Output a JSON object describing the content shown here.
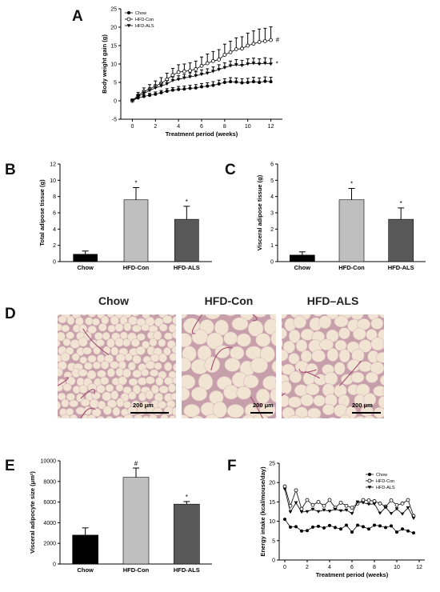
{
  "panels": {
    "A": "A",
    "B": "B",
    "C": "C",
    "D": "D",
    "E": "E",
    "F": "F"
  },
  "groups": [
    "Chow",
    "HFD-Con",
    "HFD-ALS"
  ],
  "micrographs": {
    "labels": [
      "Chow",
      "HFD-Con",
      "HFD–ALS"
    ],
    "scale_bar": "200 μm"
  },
  "chart_data": [
    {
      "id": "A",
      "type": "line",
      "xlabel": "Treatment period (weeks)",
      "ylabel": "Body weight gain (g)",
      "xlim": [
        -1,
        13
      ],
      "ylim": [
        -5,
        25
      ],
      "xticks": [
        0,
        2,
        4,
        6,
        8,
        10,
        12
      ],
      "yticks": [
        -5,
        0,
        5,
        10,
        15,
        20,
        25
      ],
      "legend_position": "top-left",
      "x": [
        0,
        0.5,
        1,
        1.5,
        2,
        2.5,
        3,
        3.5,
        4,
        4.5,
        5,
        5.5,
        6,
        6.5,
        7,
        7.5,
        8,
        8.5,
        9,
        9.5,
        10,
        10.5,
        11,
        11.5,
        12
      ],
      "series": [
        {
          "name": "Chow",
          "marker": "filled-circle",
          "values": [
            0,
            0.8,
            1.2,
            1.5,
            1.8,
            2.2,
            2.6,
            2.9,
            3.1,
            3.2,
            3.4,
            3.5,
            3.8,
            4.0,
            4.2,
            4.6,
            5.0,
            5.2,
            5.1,
            4.9,
            5.0,
            5.2,
            5.0,
            5.3,
            5.2
          ],
          "errors": [
            0.3,
            0.4,
            0.5,
            0.5,
            0.6,
            0.6,
            0.7,
            0.7,
            0.8,
            0.8,
            0.8,
            0.9,
            0.9,
            0.9,
            1.0,
            1.0,
            1.0,
            1.1,
            1.1,
            1.1,
            1.1,
            1.2,
            1.2,
            1.2,
            1.2
          ]
        },
        {
          "name": "HFD-Con",
          "marker": "open-circle",
          "values": [
            0,
            1.5,
            2.5,
            3.2,
            4.0,
            4.8,
            5.8,
            7.0,
            7.8,
            8.0,
            8.2,
            8.6,
            9.5,
            10.2,
            10.8,
            11.2,
            12.5,
            13.2,
            14.0,
            14.2,
            15.0,
            15.5,
            16.0,
            16.2,
            16.5
          ],
          "errors": [
            0.5,
            0.8,
            1.0,
            1.2,
            1.4,
            1.5,
            1.7,
            1.8,
            2.0,
            2.0,
            2.1,
            2.2,
            2.4,
            2.5,
            2.6,
            2.7,
            2.9,
            3.0,
            3.1,
            3.2,
            3.4,
            3.5,
            3.5,
            3.5,
            3.6
          ]
        },
        {
          "name": "HFD-ALS",
          "marker": "filled-triangle",
          "values": [
            0,
            1.2,
            2.0,
            2.8,
            3.5,
            4.0,
            4.6,
            5.5,
            5.8,
            6.2,
            6.5,
            6.8,
            7.2,
            7.5,
            8.0,
            8.5,
            9.0,
            9.5,
            9.8,
            9.6,
            10.0,
            10.2,
            10.0,
            10.2,
            10.0
          ],
          "errors": [
            0.3,
            0.5,
            0.6,
            0.7,
            0.8,
            0.8,
            0.9,
            1.0,
            1.0,
            1.0,
            1.1,
            1.1,
            1.2,
            1.2,
            1.2,
            1.3,
            1.3,
            1.3,
            1.4,
            1.4,
            1.4,
            1.4,
            1.4,
            1.5,
            1.5
          ]
        }
      ],
      "annotations": [
        {
          "text": "#",
          "series": "HFD-Con"
        },
        {
          "text": "*",
          "series": "HFD-ALS"
        }
      ]
    },
    {
      "id": "B",
      "type": "bar",
      "ylabel": "Total adipose tissue (g)",
      "categories": [
        "Chow",
        "HFD-Con",
        "HFD-ALS"
      ],
      "values": [
        0.9,
        7.6,
        5.2
      ],
      "errors": [
        0.4,
        1.5,
        1.6
      ],
      "ylim": [
        0,
        12
      ],
      "yticks": [
        0,
        2,
        4,
        6,
        8,
        10,
        12
      ],
      "annotations": [
        "",
        "*",
        "*"
      ],
      "colors": [
        "#000000",
        "#bfbfbf",
        "#595959"
      ]
    },
    {
      "id": "C",
      "type": "bar",
      "ylabel": "Visceral adipose tissue (g)",
      "categories": [
        "Chow",
        "HFD-Con",
        "HFD-ALS"
      ],
      "values": [
        0.4,
        3.8,
        2.6
      ],
      "errors": [
        0.2,
        0.7,
        0.7
      ],
      "ylim": [
        0,
        6
      ],
      "yticks": [
        0,
        1,
        2,
        3,
        4,
        5,
        6
      ],
      "annotations": [
        "",
        "*",
        "*"
      ],
      "colors": [
        "#000000",
        "#bfbfbf",
        "#595959"
      ]
    },
    {
      "id": "E",
      "type": "bar",
      "ylabel": "Visceral adipocyte size (μm²)",
      "categories": [
        "Chow",
        "HFD-Con",
        "HFD-ALS"
      ],
      "values": [
        2800,
        8400,
        5800
      ],
      "errors": [
        700,
        900,
        250
      ],
      "ylim": [
        0,
        10000
      ],
      "yticks": [
        0,
        2000,
        4000,
        6000,
        8000,
        10000
      ],
      "annotations": [
        "",
        "#",
        "*"
      ],
      "colors": [
        "#000000",
        "#bfbfbf",
        "#595959"
      ]
    },
    {
      "id": "F",
      "type": "line",
      "xlabel": "Treatment period (weeks)",
      "ylabel": "Energy intake (kcal/mouse/day)",
      "xlim": [
        -0.5,
        12.5
      ],
      "ylim": [
        0,
        25
      ],
      "xticks": [
        0,
        2,
        4,
        6,
        8,
        10,
        12
      ],
      "yticks": [
        0,
        5,
        10,
        15,
        20,
        25
      ],
      "legend_position": "top-right",
      "x": [
        0,
        0.5,
        1,
        1.5,
        2,
        2.5,
        3,
        3.5,
        4,
        4.5,
        5,
        5.5,
        6,
        6.5,
        7,
        7.5,
        8,
        8.5,
        9,
        9.5,
        10,
        10.5,
        11,
        11.5
      ],
      "series": [
        {
          "name": "Chow",
          "marker": "filled-circle",
          "values": [
            10.5,
            8.5,
            8.6,
            7.5,
            7.6,
            8.5,
            8.7,
            8.3,
            8.9,
            8.4,
            8.0,
            9.0,
            7.2,
            9.0,
            8.6,
            8.0,
            9.0,
            8.8,
            8.4,
            8.8,
            7.2,
            8.0,
            7.5,
            7.0
          ],
          "errors": []
        },
        {
          "name": "HFD-Con",
          "marker": "open-circle",
          "values": [
            19.0,
            14.0,
            18.0,
            13.2,
            15.5,
            14.2,
            15.0,
            14.0,
            15.5,
            13.5,
            14.8,
            14.0,
            13.5,
            14.6,
            15.5,
            15.4,
            15.2,
            14.6,
            13.8,
            15.4,
            14.2,
            14.6,
            15.5,
            11.4
          ],
          "errors": []
        },
        {
          "name": "HFD-ALS",
          "marker": "filled-triangle",
          "values": [
            18.3,
            12.4,
            14.8,
            12.4,
            12.5,
            13.1,
            12.5,
            12.9,
            12.6,
            13.1,
            12.7,
            12.9,
            12.0,
            15.0,
            14.8,
            14.4,
            14.5,
            12.1,
            13.6,
            12.0,
            13.2,
            11.9,
            13.5,
            10.8
          ],
          "errors": []
        }
      ]
    }
  ]
}
